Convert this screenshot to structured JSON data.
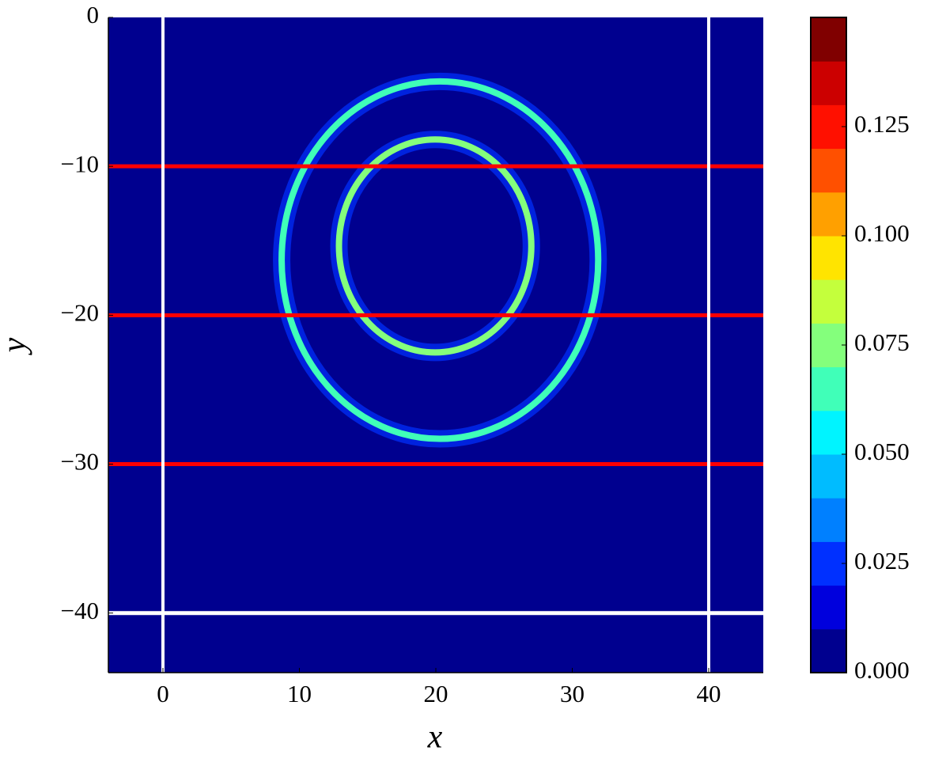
{
  "chart_data": {
    "type": "contourf",
    "xlabel": "x",
    "ylabel": "y",
    "xlim": [
      -4,
      44
    ],
    "ylim": [
      -44,
      0
    ],
    "xticks": [
      0,
      10,
      20,
      30,
      40
    ],
    "yticks": [
      {
        "value": 0,
        "label": "0"
      },
      {
        "value": -10,
        "label": "−10"
      },
      {
        "value": -20,
        "label": "−20"
      },
      {
        "value": -30,
        "label": "−30"
      },
      {
        "value": -40,
        "label": "−40"
      }
    ],
    "background": 0,
    "rings": [
      {
        "cx": 20.3,
        "cy": -16.3,
        "rx": 11.6,
        "ry": 12,
        "level": 0.065
      },
      {
        "cx": 19.95,
        "cy": -15.35,
        "rx": 7.05,
        "ry": 7.15,
        "level": 0.075
      }
    ],
    "hlines": [
      {
        "y": -10,
        "color": "#ff0000"
      },
      {
        "y": -20,
        "color": "#ff0000"
      },
      {
        "y": -30,
        "color": "#ff0000"
      },
      {
        "y": -40,
        "color": "#ffffff"
      }
    ],
    "vlines": [
      {
        "x": 0,
        "color": "#ffffff"
      },
      {
        "x": 40,
        "color": "#ffffff"
      }
    ],
    "clim": [
      0,
      0.15
    ],
    "colors": [
      "#00008f",
      "#0000dd",
      "#0030ff",
      "#0080ff",
      "#00bcff",
      "#00f4ff",
      "#40ffb8",
      "#84ff7c",
      "#c4ff3c",
      "#ffe400",
      "#ffa000",
      "#ff5000",
      "#ff1000",
      "#cc0000",
      "#800000"
    ],
    "cticks": [
      {
        "value": 0,
        "label": "0.000"
      },
      {
        "value": 0.025,
        "label": "0.025"
      },
      {
        "value": 0.05,
        "label": "0.050"
      },
      {
        "value": 0.075,
        "label": "0.075"
      },
      {
        "value": 0.1,
        "label": "0.100"
      },
      {
        "value": 0.125,
        "label": "0.125"
      }
    ]
  }
}
